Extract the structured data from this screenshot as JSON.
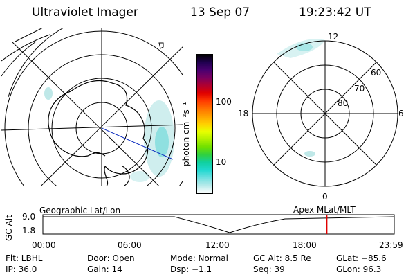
{
  "header": {
    "instrument": "Ultraviolet Imager",
    "date": "13 Sep 07",
    "time": "19:23:42 UT"
  },
  "geo_map": {
    "caption": "Geographic Lat/Lon"
  },
  "mlt_map": {
    "caption": "Apex MLat/MLT",
    "hour_labels": {
      "top": "12",
      "left": "18",
      "right": "6",
      "bottom": "0"
    },
    "lat_labels": [
      "60",
      "70",
      "80"
    ]
  },
  "colorbar": {
    "unit": "photon cm⁻²s⁻¹",
    "ticks": [
      "100",
      "10"
    ],
    "colors": [
      "#000000",
      "#200050",
      "#4a0070",
      "#7a0060",
      "#b00030",
      "#e00000",
      "#ff3a00",
      "#ff7000",
      "#ffa000",
      "#ffd000",
      "#e8ff00",
      "#b0f000",
      "#70e000",
      "#30d040",
      "#10d0a0",
      "#20d8d0",
      "#70e0e0",
      "#b8eaea",
      "#ffffff"
    ]
  },
  "altitude_plot": {
    "ylabel": "GC Alt",
    "ticks": [
      "9.0",
      "1.8"
    ],
    "xticks": [
      "00:00",
      "06:00",
      "12:00",
      "18:00",
      "23:59"
    ],
    "current_marker_hour": 19.4,
    "marker_color": "#e00000"
  },
  "status": {
    "flt": "Flt: LBHL",
    "door": "Door: Open",
    "mode": "Mode: Normal",
    "gcalt": "GC Alt: 8.5 Re",
    "glat": "GLat: −85.6",
    "ip": "IP: 36.0",
    "gain": "Gain: 14",
    "dsp": "Dsp:   −1.1",
    "seq": "Seq: 39",
    "glon": "GLon:  96.3"
  }
}
